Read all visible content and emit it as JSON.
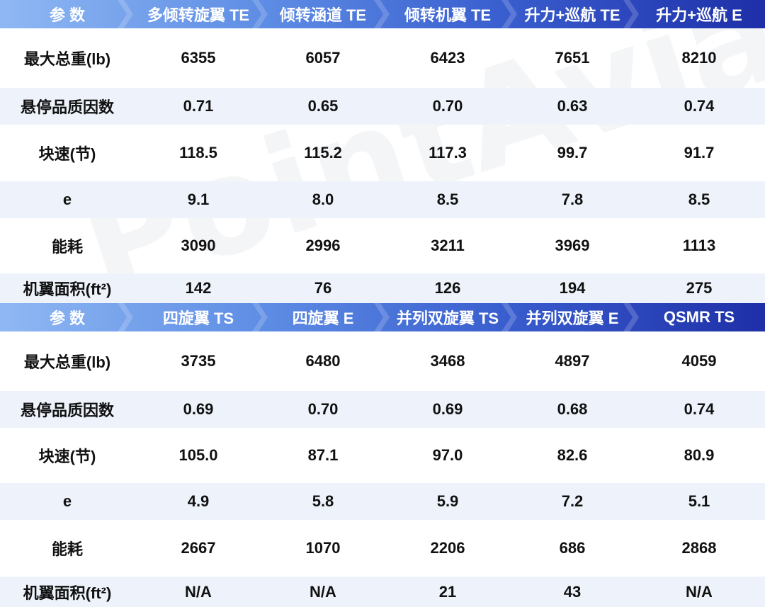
{
  "watermark": "PointAvia",
  "tables": [
    {
      "header": [
        "参  数",
        "多倾转旋翼 TE",
        "倾转涵道 TE",
        "倾转机翼 TE",
        "升力+巡航 TE",
        "升力+巡航 E"
      ],
      "rows": [
        [
          "最大总重(lb)",
          "6355",
          "6057",
          "6423",
          "7651",
          "8210"
        ],
        [
          "悬停品质因数",
          "0.71",
          "0.65",
          "0.70",
          "0.63",
          "0.74"
        ],
        [
          "块速(节)",
          "118.5",
          "115.2",
          "117.3",
          "99.7",
          "91.7"
        ],
        [
          "e",
          "9.1",
          "8.0",
          "8.5",
          "7.8",
          "8.5"
        ],
        [
          "能耗",
          "3090",
          "2996",
          "3211",
          "3969",
          "1113"
        ],
        [
          "机翼面积(ft²)",
          "142",
          "76",
          "126",
          "194",
          "275"
        ]
      ]
    },
    {
      "header": [
        "参  数",
        "四旋翼 TS",
        "四旋翼 E",
        "并列双旋翼 TS",
        "并列双旋翼 E",
        "QSMR TS"
      ],
      "rows": [
        [
          "最大总重(lb)",
          "3735",
          "6480",
          "3468",
          "4897",
          "4059"
        ],
        [
          "悬停品质因数",
          "0.69",
          "0.70",
          "0.69",
          "0.68",
          "0.74"
        ],
        [
          "块速(节)",
          "105.0",
          "87.1",
          "97.0",
          "82.6",
          "80.9"
        ],
        [
          "e",
          "4.9",
          "5.8",
          "5.9",
          "7.2",
          "5.1"
        ],
        [
          "能耗",
          "2667",
          "1070",
          "2206",
          "686",
          "2868"
        ],
        [
          "机翼面积(ft²)",
          "N/A",
          "N/A",
          "21",
          "43",
          "N/A"
        ]
      ]
    }
  ]
}
